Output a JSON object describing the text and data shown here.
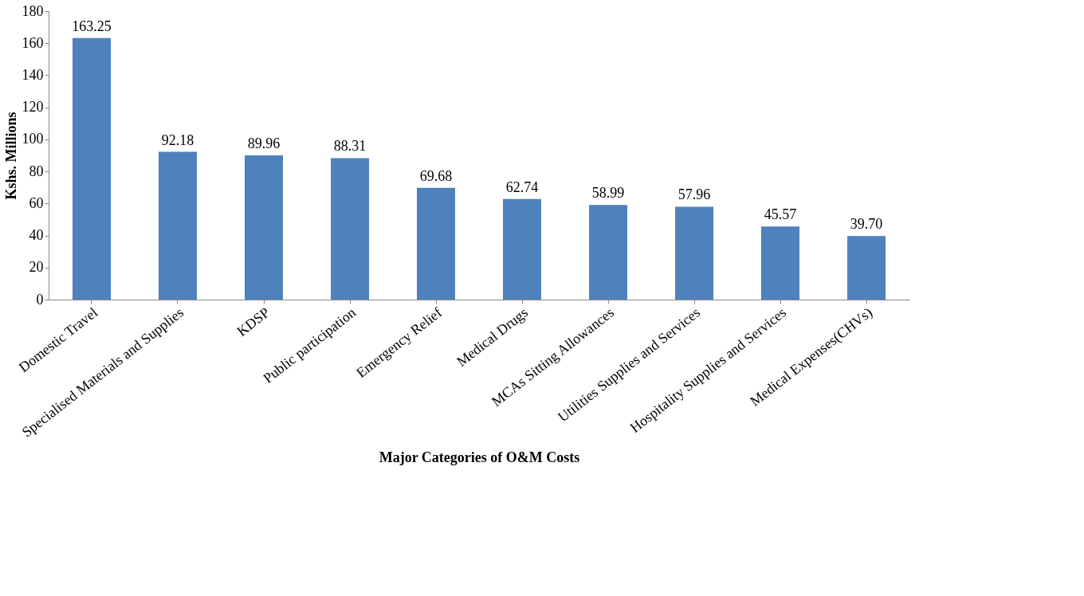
{
  "chart_data": {
    "type": "bar",
    "xlabel": "Major Categories of O&M Costs",
    "ylabel": "Kshs. Millions",
    "categories": [
      "Domestic Travel",
      "Specialised Materials and Supplies",
      "KDSP",
      "Public participation",
      "Emergency Relief",
      "Medical Drugs",
      "MCAs Sitting Allowances",
      "Utilities Supplies and Services",
      "Hospitality Supplies and Services",
      "Medical Expenses(CHVs)"
    ],
    "values": [
      163.25,
      92.18,
      89.96,
      88.31,
      69.68,
      62.74,
      58.99,
      57.96,
      45.57,
      39.7
    ],
    "value_labels": [
      "163.25",
      "92.18",
      "89.96",
      "88.31",
      "69.68",
      "62.74",
      "58.99",
      "57.96",
      "45.57",
      "39.70"
    ],
    "color": "#4f81bd",
    "ylim": [
      0,
      180
    ],
    "yticks": [
      0,
      20,
      40,
      60,
      80,
      100,
      120,
      140,
      160,
      180
    ],
    "grid": false
  }
}
